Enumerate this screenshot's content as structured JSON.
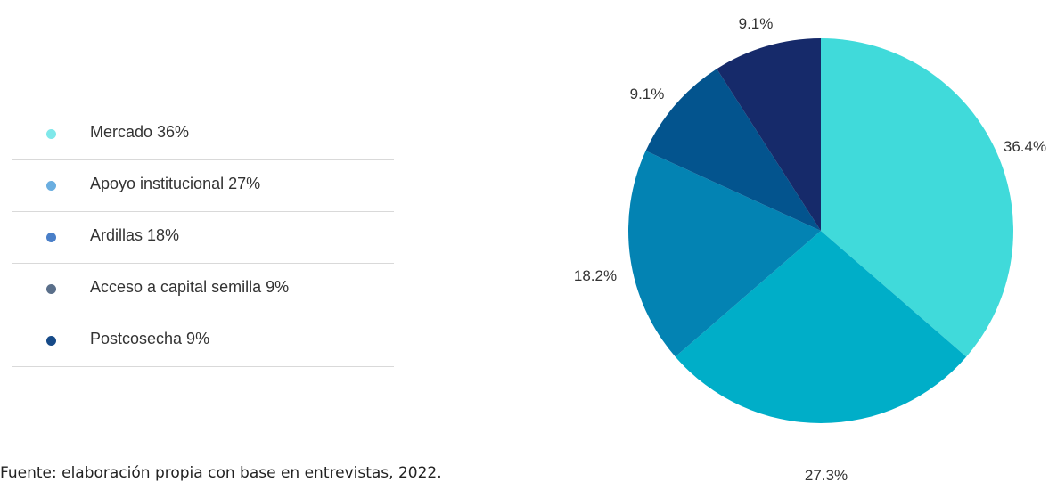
{
  "chart_data": {
    "type": "pie",
    "slices": [
      {
        "legend": "Mercado 36%",
        "value": 36.4,
        "label": "36.4%",
        "color": "#40dada",
        "legend_color": "#7fe8ea"
      },
      {
        "legend": "Apoyo institucional 27%",
        "value": 27.3,
        "label": "27.3%",
        "color": "#00aec8",
        "legend_color": "#6aaee0"
      },
      {
        "legend": "Ardillas 18%",
        "value": 18.2,
        "label": "18.2%",
        "color": "#0383b3",
        "legend_color": "#4a7fc8"
      },
      {
        "legend": "Acceso a capital semilla 9%",
        "value": 9.1,
        "label": "9.1%",
        "color": "#03548e",
        "legend_color": "#5a6f8a"
      },
      {
        "legend": "Postcosecha 9%",
        "value": 9.1,
        "label": "9.1%",
        "color": "#162a6a",
        "legend_color": "#164a88"
      }
    ],
    "legend_position": "left"
  },
  "source_note": "Fuente: elaboración propia con base en entrevistas, 2022."
}
